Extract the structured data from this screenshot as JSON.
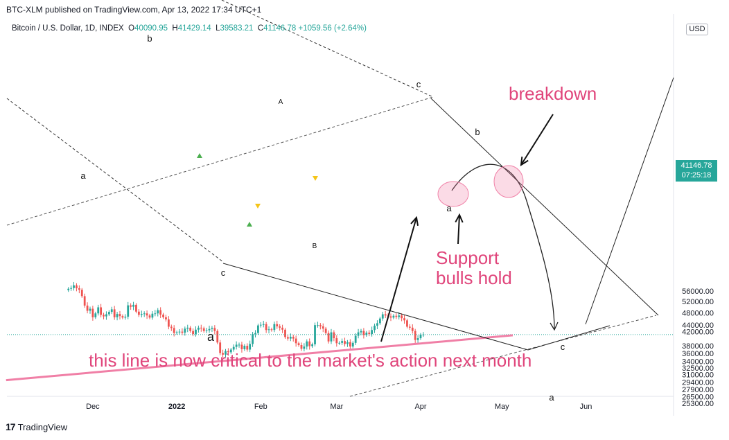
{
  "header": {
    "published": "BTC-XLM published on TradingView.com, Apr 13, 2022 17:34 UTC+1",
    "symbol": "Bitcoin / U.S. Dollar, 1D, INDEX",
    "open_label": "O",
    "open": "40090.95",
    "high_label": "H",
    "high": "41429.14",
    "low_label": "L",
    "low": "39583.21",
    "close_label": "C",
    "close": "41146.78",
    "change": "+1059.56 (+2.64%)"
  },
  "currency": "USD",
  "price_badge": {
    "price": "41146.78",
    "countdown": "07:25:18"
  },
  "footer": {
    "logo": "17",
    "brand": "TradingView"
  },
  "colors": {
    "up": "#26a69a",
    "down": "#ef5350",
    "pink": "#f07fa6",
    "annotation": "#e0457b"
  },
  "chart_data": {
    "type": "candlestick",
    "title": "",
    "ytick_labels": [
      "56000.00",
      "52000.00",
      "48000.00",
      "44000.00",
      "42000.00",
      "38000.00",
      "36000.00",
      "34000.00",
      "32500.00",
      "31000.00",
      "29400.00",
      "27900.00",
      "26500.00",
      "25300.00"
    ],
    "xtick_labels": [
      "Dec",
      "2022",
      "Feb",
      "Mar",
      "Apr",
      "May",
      "Jun"
    ],
    "series_close": [
      56900,
      57200,
      58300,
      57100,
      56500,
      54000,
      50500,
      48700,
      49400,
      46500,
      47800,
      49900,
      47300,
      46800,
      47500,
      48300,
      49200,
      46500,
      47600,
      46900,
      46400,
      46700,
      50600,
      50100,
      50800,
      48400,
      47300,
      47600,
      47800,
      47100,
      46400,
      47700,
      47800,
      48900,
      47400,
      46500,
      45800,
      43500,
      43100,
      41600,
      41800,
      42000,
      41700,
      42900,
      43200,
      42200,
      41300,
      42600,
      43200,
      43000,
      42200,
      42400,
      42800,
      43100,
      42200,
      38900,
      36100,
      35700,
      36600,
      36300,
      37000,
      37700,
      38300,
      38300,
      37100,
      38000,
      37000,
      38500,
      41300,
      41600,
      43900,
      44100,
      44300,
      42500,
      42700,
      42500,
      44300,
      43600,
      43200,
      42600,
      40400,
      40000,
      40500,
      40000,
      38700,
      38200,
      37200,
      37800,
      39200,
      37900,
      38400,
      44000,
      44000,
      43600,
      42900,
      41600,
      39200,
      41800,
      40100,
      38700,
      38800,
      39300,
      38500,
      39000,
      37800,
      38800,
      40800,
      41800,
      42200,
      41000,
      41700,
      41300,
      42500,
      43800,
      44600,
      46100,
      47500,
      47100,
      46800,
      46400,
      47000,
      46600,
      47100,
      46200,
      45500,
      43500,
      43200,
      42200,
      39600,
      40100,
      41100,
      41147
    ],
    "levels": {
      "last_price": 41146.78
    },
    "drawings": {
      "pink_support_line": {
        "from": {
          "date": "2021-11-01",
          "price": 29900
        },
        "to": {
          "date": "2022-04-20",
          "price": 39900
        }
      },
      "breakdown_curve": "projected drop toward c",
      "wave_labels": [
        "a",
        "b",
        "c",
        "a",
        "A",
        "B",
        "a",
        "c",
        "b",
        "c",
        "a"
      ]
    }
  },
  "annotations": {
    "breakdown": "breakdown",
    "support_line1": "Support",
    "support_line2": "bulls hold",
    "critical": "this line is now critical to the market's action next month"
  }
}
